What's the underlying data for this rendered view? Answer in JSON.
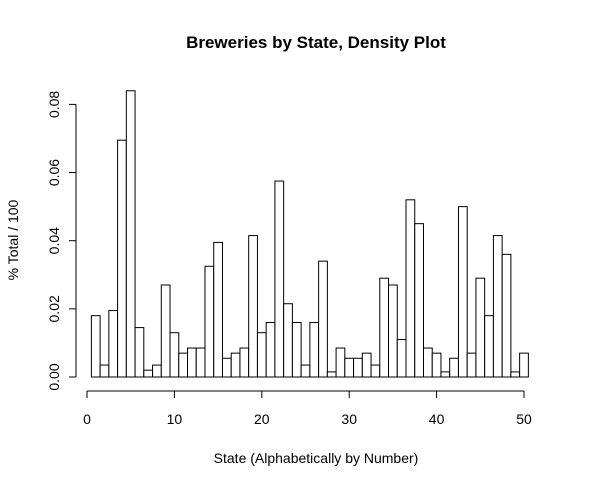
{
  "chart_data": {
    "type": "bar",
    "title": "Breweries by State, Density Plot",
    "xlabel": "State (Alphabetically by Number)",
    "ylabel": "% Total / 100",
    "bin_width": 1,
    "bin_start": 1,
    "xlim": [
      0,
      51
    ],
    "ylim": [
      0,
      0.085
    ],
    "xticks": [
      0,
      10,
      20,
      30,
      40,
      50
    ],
    "yticks": [
      0.0,
      0.02,
      0.04,
      0.06,
      0.08
    ],
    "xtick_labels": [
      "0",
      "10",
      "20",
      "30",
      "40",
      "50"
    ],
    "ytick_labels": [
      "0.00",
      "0.02",
      "0.04",
      "0.06",
      "0.08"
    ],
    "values": [
      0.018,
      0.0035,
      0.0195,
      0.0695,
      0.084,
      0.0145,
      0.002,
      0.0035,
      0.027,
      0.013,
      0.007,
      0.0085,
      0.0085,
      0.0325,
      0.0395,
      0.0055,
      0.007,
      0.0085,
      0.0415,
      0.013,
      0.016,
      0.0575,
      0.0215,
      0.016,
      0.0035,
      0.016,
      0.034,
      0.0015,
      0.0085,
      0.0055,
      0.0055,
      0.007,
      0.0035,
      0.029,
      0.027,
      0.011,
      0.052,
      0.045,
      0.0085,
      0.007,
      0.0015,
      0.0055,
      0.05,
      0.007,
      0.029,
      0.018,
      0.0415,
      0.036,
      0.0015,
      0.007
    ],
    "grid": false,
    "legend": "none"
  }
}
